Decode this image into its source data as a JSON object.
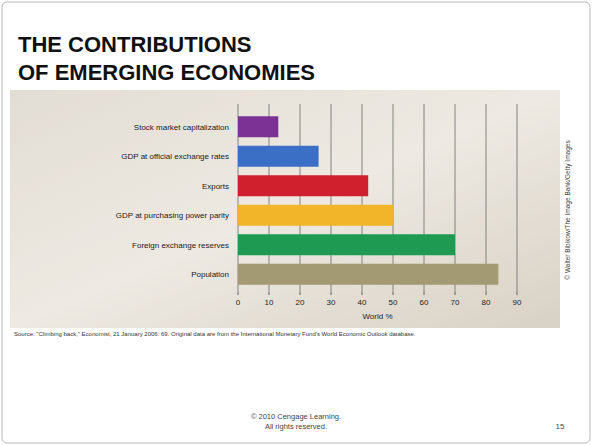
{
  "chart_data": {
    "type": "bar",
    "orientation": "horizontal",
    "title": "THE CONTRIBUTIONS OF EMERGING ECONOMIES",
    "x_label": "World %",
    "categories": [
      "Stock market capitalization",
      "GDP at official exchange rates",
      "Exports",
      "GDP at purchasing power parity",
      "Foreign exchange reserves",
      "Population"
    ],
    "values": [
      13,
      26,
      42,
      50,
      70,
      84
    ],
    "colors": [
      "#7b3294",
      "#3b6fc6",
      "#d0202e",
      "#f2b52a",
      "#1e9a52",
      "#a39a74"
    ],
    "xlim": [
      0,
      90
    ],
    "xticks": [
      0,
      10,
      20,
      30,
      40,
      50,
      60,
      70,
      80,
      90
    ],
    "grid": true
  },
  "slide": {
    "source": "Source: \"Climbing back,\" Economist, 21 January 2006: 69. Original data are from the International Monetary Fund's World Economic Outlook database.",
    "photo_credit": "© Walter Bibikow/The Image Bank/Getty Images",
    "copyright": [
      "© 2010 Cengage Learning.",
      "All rights reserved."
    ],
    "page_number": "15"
  }
}
